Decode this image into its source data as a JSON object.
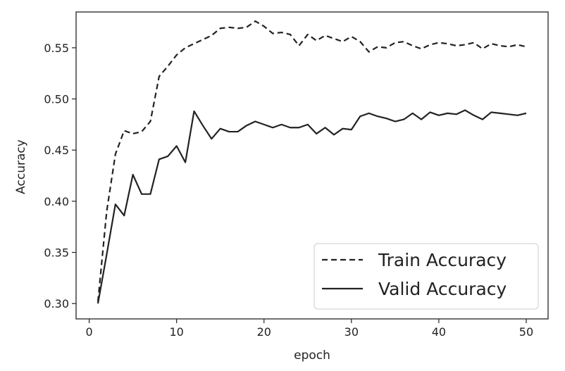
{
  "chart_data": {
    "type": "line",
    "title": "",
    "xlabel": "epoch",
    "ylabel": "Accuracy",
    "xlim": [
      -1.5,
      52.5
    ],
    "ylim": [
      0.285,
      0.585
    ],
    "x_ticks": [
      0,
      10,
      20,
      30,
      40,
      50
    ],
    "y_ticks": [
      0.3,
      0.35,
      0.4,
      0.45,
      0.5,
      0.55
    ],
    "x_tick_labels": [
      "0",
      "10",
      "20",
      "30",
      "40",
      "50"
    ],
    "y_tick_labels": [
      "0.30",
      "0.35",
      "0.40",
      "0.45",
      "0.50",
      "0.55"
    ],
    "grid": false,
    "legend_position": "lower-right",
    "x": [
      1,
      2,
      3,
      4,
      5,
      6,
      7,
      8,
      9,
      10,
      11,
      12,
      13,
      14,
      15,
      16,
      17,
      18,
      19,
      20,
      21,
      22,
      23,
      24,
      25,
      26,
      27,
      28,
      29,
      30,
      31,
      32,
      33,
      34,
      35,
      36,
      37,
      38,
      39,
      40,
      41,
      42,
      43,
      44,
      45,
      46,
      47,
      48,
      49,
      50
    ],
    "series": [
      {
        "name": "Train Accuracy",
        "style": "dashed",
        "color": "#222222",
        "values": [
          0.302,
          0.39,
          0.446,
          0.469,
          0.466,
          0.468,
          0.478,
          0.522,
          0.532,
          0.543,
          0.55,
          0.554,
          0.558,
          0.562,
          0.569,
          0.57,
          0.569,
          0.57,
          0.576,
          0.571,
          0.564,
          0.565,
          0.563,
          0.552,
          0.563,
          0.557,
          0.562,
          0.559,
          0.556,
          0.561,
          0.556,
          0.546,
          0.551,
          0.55,
          0.555,
          0.556,
          0.552,
          0.549,
          0.553,
          0.555,
          0.554,
          0.552,
          0.553,
          0.555,
          0.549,
          0.554,
          0.552,
          0.551,
          0.553,
          0.551
        ]
      },
      {
        "name": "Valid Accuracy",
        "style": "solid",
        "color": "#222222",
        "values": [
          0.3,
          0.348,
          0.397,
          0.386,
          0.426,
          0.407,
          0.407,
          0.441,
          0.444,
          0.454,
          0.438,
          0.488,
          0.474,
          0.461,
          0.471,
          0.468,
          0.468,
          0.474,
          0.478,
          0.475,
          0.472,
          0.475,
          0.472,
          0.472,
          0.475,
          0.466,
          0.472,
          0.465,
          0.471,
          0.47,
          0.483,
          0.486,
          0.483,
          0.481,
          0.478,
          0.48,
          0.486,
          0.48,
          0.487,
          0.484,
          0.486,
          0.485,
          0.489,
          0.484,
          0.48,
          0.487,
          0.486,
          0.485,
          0.484,
          0.486
        ]
      }
    ]
  }
}
